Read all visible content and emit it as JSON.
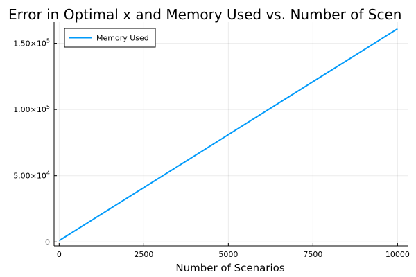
{
  "chart_data": {
    "type": "line",
    "title": "Error in Optimal x and Memory Used vs. Number of Scen",
    "xlabel": "Number of Scenarios",
    "ylabel": "",
    "xlim": [
      -150,
      10300
    ],
    "ylim": [
      -3000,
      166000
    ],
    "grid": true,
    "legend_position": "top-left",
    "x_ticks": [
      {
        "value": 0,
        "label": "0"
      },
      {
        "value": 2500,
        "label": "2500"
      },
      {
        "value": 5000,
        "label": "5000"
      },
      {
        "value": 7500,
        "label": "7500"
      },
      {
        "value": 10000,
        "label": "10000"
      }
    ],
    "y_ticks": [
      {
        "value": 0,
        "base": "0",
        "exp": ""
      },
      {
        "value": 50000,
        "base": "5.00×10",
        "exp": "4"
      },
      {
        "value": 100000,
        "base": "1.00×10",
        "exp": "5"
      },
      {
        "value": 150000,
        "base": "1.50×10",
        "exp": "5"
      }
    ],
    "series": [
      {
        "name": "Memory Used",
        "color": "#009AFA",
        "x": [
          1,
          2500,
          5000,
          7500,
          10000
        ],
        "y": [
          1000,
          41000,
          81000,
          121000,
          161000
        ]
      }
    ]
  }
}
